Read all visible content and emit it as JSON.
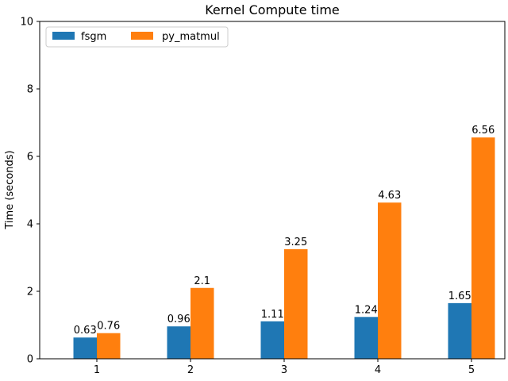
{
  "chart_data": {
    "type": "bar",
    "title": "Kernel Compute time",
    "xlabel": "",
    "ylabel": "Time (seconds)",
    "categories": [
      "1",
      "2",
      "3",
      "4",
      "5"
    ],
    "ylim": [
      0,
      10
    ],
    "yticks": [
      "0",
      "2",
      "4",
      "6",
      "8",
      "10"
    ],
    "grid": false,
    "legend_position": "top-left",
    "series": [
      {
        "name": "fsgm",
        "color": "#1f77b4",
        "values": [
          0.63,
          0.96,
          1.11,
          1.24,
          1.65
        ],
        "labels": [
          "0.63",
          "0.96",
          "1.11",
          "1.24",
          "1.65"
        ]
      },
      {
        "name": "py_matmul",
        "color": "#ff7f0e",
        "values": [
          0.76,
          2.1,
          3.25,
          4.63,
          6.56
        ],
        "labels": [
          "0.76",
          "2.1",
          "3.25",
          "4.63",
          "6.56"
        ]
      }
    ]
  }
}
